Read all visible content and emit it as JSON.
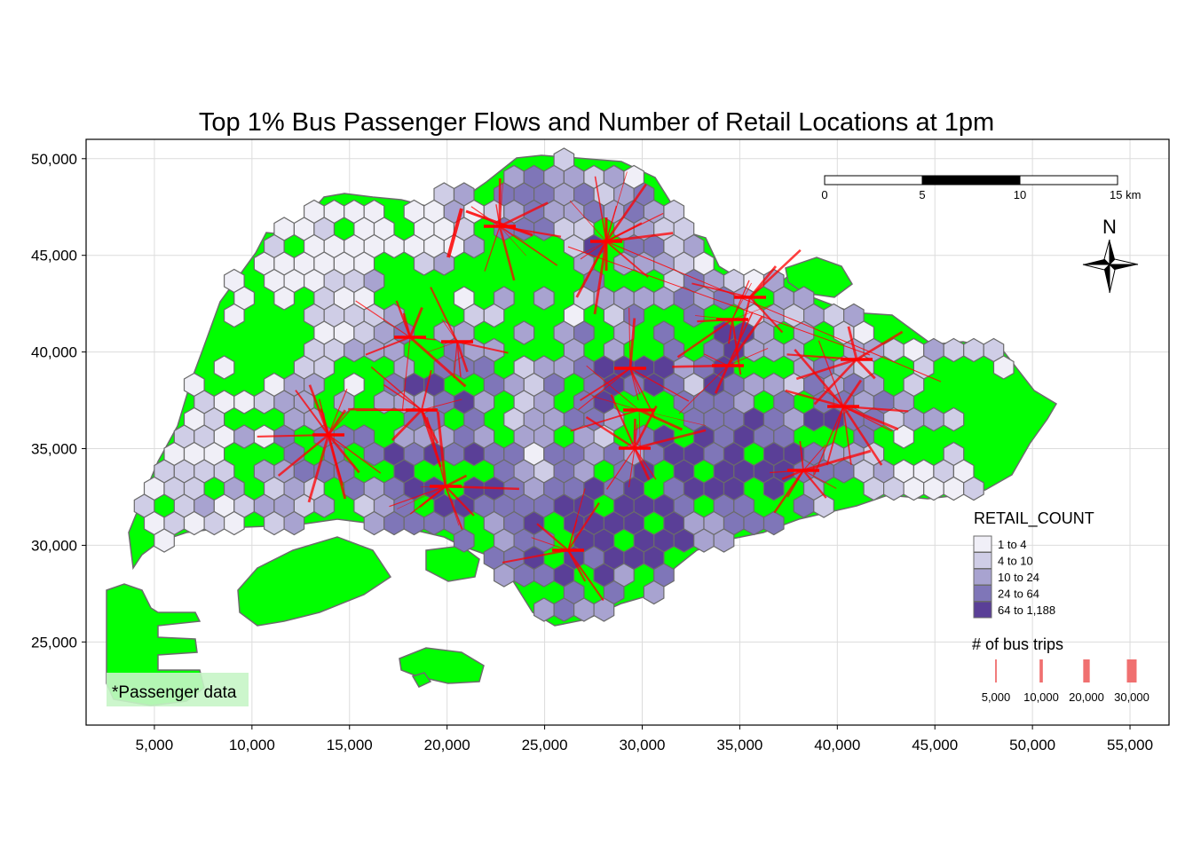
{
  "title": "Top 1% Bus Passenger Flows and Number of Retail Locations at 1pm",
  "x_axis": {
    "range": [
      1500,
      57000
    ],
    "ticks": [
      5000,
      10000,
      15000,
      20000,
      25000,
      30000,
      35000,
      40000,
      45000,
      50000,
      55000
    ],
    "tick_labels": [
      "5,000",
      "10,000",
      "15,000",
      "20,000",
      "25,000",
      "30,000",
      "35,000",
      "40,000",
      "45,000",
      "50,000",
      "55,000"
    ]
  },
  "y_axis": {
    "range": [
      20700,
      51000
    ],
    "ticks": [
      25000,
      30000,
      35000,
      40000,
      45000,
      50000
    ],
    "tick_labels": [
      "25,000",
      "30,000",
      "35,000",
      "40,000",
      "45,000",
      "50,000"
    ]
  },
  "grid": true,
  "scale_bar": {
    "labels": [
      "0",
      "5",
      "10",
      "15 km"
    ]
  },
  "north_arrow": {
    "label": "N"
  },
  "credits": "*Passenger data",
  "legend_retail": {
    "title": "RETAIL_COUNT",
    "classes": [
      {
        "label": "1 to 4",
        "color": "#f0eff7"
      },
      {
        "label": "4 to 10",
        "color": "#cfcde6"
      },
      {
        "label": "10 to 24",
        "color": "#a8a3d0"
      },
      {
        "label": "24 to 64",
        "color": "#7f76b8"
      },
      {
        "label": "64 to 1,188",
        "color": "#5a3f97"
      }
    ]
  },
  "legend_trips": {
    "title": "# of bus trips",
    "items": [
      {
        "label": "5,000",
        "value": 5000
      },
      {
        "label": "10,000",
        "value": 10000
      },
      {
        "label": "20,000",
        "value": 20000
      },
      {
        "label": "30,000",
        "value": 30000
      }
    ]
  },
  "colors": {
    "land": "#00ff00",
    "border": "#6b6b6b",
    "flow": "#ff0000",
    "frame": "#000000",
    "gridline": "#dcdcdc"
  }
}
